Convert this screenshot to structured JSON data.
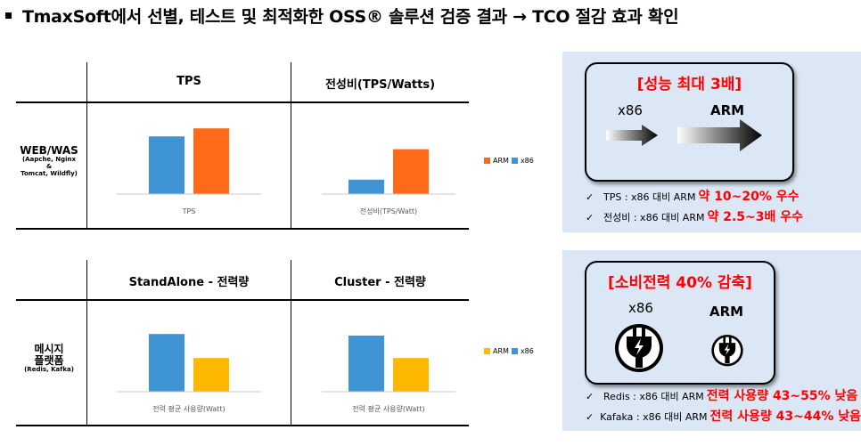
{
  "title": "TmaxSoft에서 선별, 테스트 및 최적화한 OSS® 솔루션 검증 결과 → TCO 절감 효과 확인",
  "colors": {
    "arm_orange": "#ff6a1a",
    "x86_blue": "#3f94d6",
    "arm_yellow": "#ffb800",
    "red": "#ff0000",
    "panel": "#dbe7f5"
  },
  "table1": {
    "headers": [
      "TPS",
      "전성비(TPS/Watts)"
    ],
    "row_label": "WEB/WAS",
    "row_sub": [
      "(Aapche, Nginx",
      "&",
      "Tomcat, Wildfly)"
    ],
    "legend": [
      "ARM",
      "x86"
    ]
  },
  "table2": {
    "headers": [
      "StandAlone - 전력량",
      "Cluster - 전력량"
    ],
    "row_label": [
      "메시지",
      "플랫폼"
    ],
    "row_sub": "(Redis, Kafka)",
    "legend": [
      "ARM",
      "x86"
    ]
  },
  "chart_data": [
    {
      "type": "bar",
      "title": "",
      "categories": [
        "TPS"
      ],
      "series": [
        {
          "name": "x86",
          "values": [
            72
          ]
        },
        {
          "name": "ARM",
          "values": [
            82
          ]
        }
      ],
      "ylim": [
        0,
        100
      ],
      "grid": false
    },
    {
      "type": "bar",
      "title": "",
      "categories": [
        "전성비(TPS/Watt)"
      ],
      "series": [
        {
          "name": "x86",
          "values": [
            18
          ]
        },
        {
          "name": "ARM",
          "values": [
            56
          ]
        }
      ],
      "ylim": [
        0,
        100
      ],
      "grid": false
    },
    {
      "type": "bar",
      "title": "",
      "categories": [
        "전력 평균 사용량(Watt)"
      ],
      "series": [
        {
          "name": "x86",
          "values": [
            72
          ]
        },
        {
          "name": "ARM",
          "values": [
            42
          ]
        }
      ],
      "ylim": [
        0,
        100
      ],
      "grid": false
    },
    {
      "type": "bar",
      "title": "",
      "categories": [
        "전력 평균 사용량(Watt)"
      ],
      "series": [
        {
          "name": "x86",
          "values": [
            70
          ]
        },
        {
          "name": "ARM",
          "values": [
            42
          ]
        }
      ],
      "ylim": [
        0,
        100
      ],
      "grid": false
    }
  ],
  "panel1": {
    "heading": "[성능 최대 3배]",
    "left_label": "x86",
    "right_label": "ARM",
    "bullets": [
      {
        "text": "TPS : x86 대비 ARM",
        "highlight": "약 10~20% 우수"
      },
      {
        "text": "전성비 : x86 대비 ARM",
        "highlight": "약 2.5~3배 우수"
      }
    ]
  },
  "panel2": {
    "heading": "[소비전력 40% 감축]",
    "left_label": "x86",
    "right_label": "ARM",
    "bullets": [
      {
        "text": "Redis : x86 대비 ARM",
        "highlight": "전력 사용량 43~55% 낮음"
      },
      {
        "text": "Kafaka : x86 대비 ARM",
        "highlight": "전력 사용량 43~44% 낮음"
      }
    ]
  }
}
